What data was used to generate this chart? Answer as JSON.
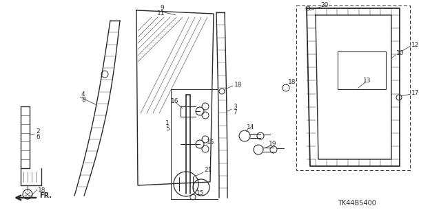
{
  "bg_color": "#ffffff",
  "line_color": "#2a2a2a",
  "part_code": "TK44B5400",
  "figsize": [
    6.4,
    3.19
  ],
  "dpi": 100,
  "xlim": [
    0,
    640
  ],
  "ylim": [
    0,
    319
  ]
}
